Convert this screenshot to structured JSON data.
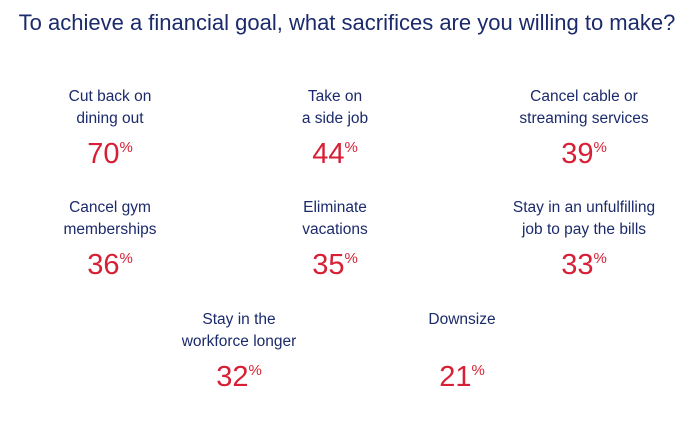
{
  "title": "To achieve a financial goal, what sacrifices are you willing to make?",
  "percent_sign": "%",
  "colors": {
    "text": "#1b2a6b",
    "accent": "#d71f36"
  },
  "stats": [
    {
      "label": "Cut back on\ndining out",
      "value": "70"
    },
    {
      "label": "Take on\na side job",
      "value": "44"
    },
    {
      "label": "Cancel cable or\nstreaming services",
      "value": "39"
    },
    {
      "label": "Cancel gym\nmemberships",
      "value": "36"
    },
    {
      "label": "Eliminate\nvacations",
      "value": "35"
    },
    {
      "label": "Stay in an unfulfilling\njob to pay the bills",
      "value": "33"
    },
    {
      "label": "Stay in the\nworkforce longer",
      "value": "32"
    },
    {
      "label": "Downsize",
      "value": "21"
    }
  ]
}
